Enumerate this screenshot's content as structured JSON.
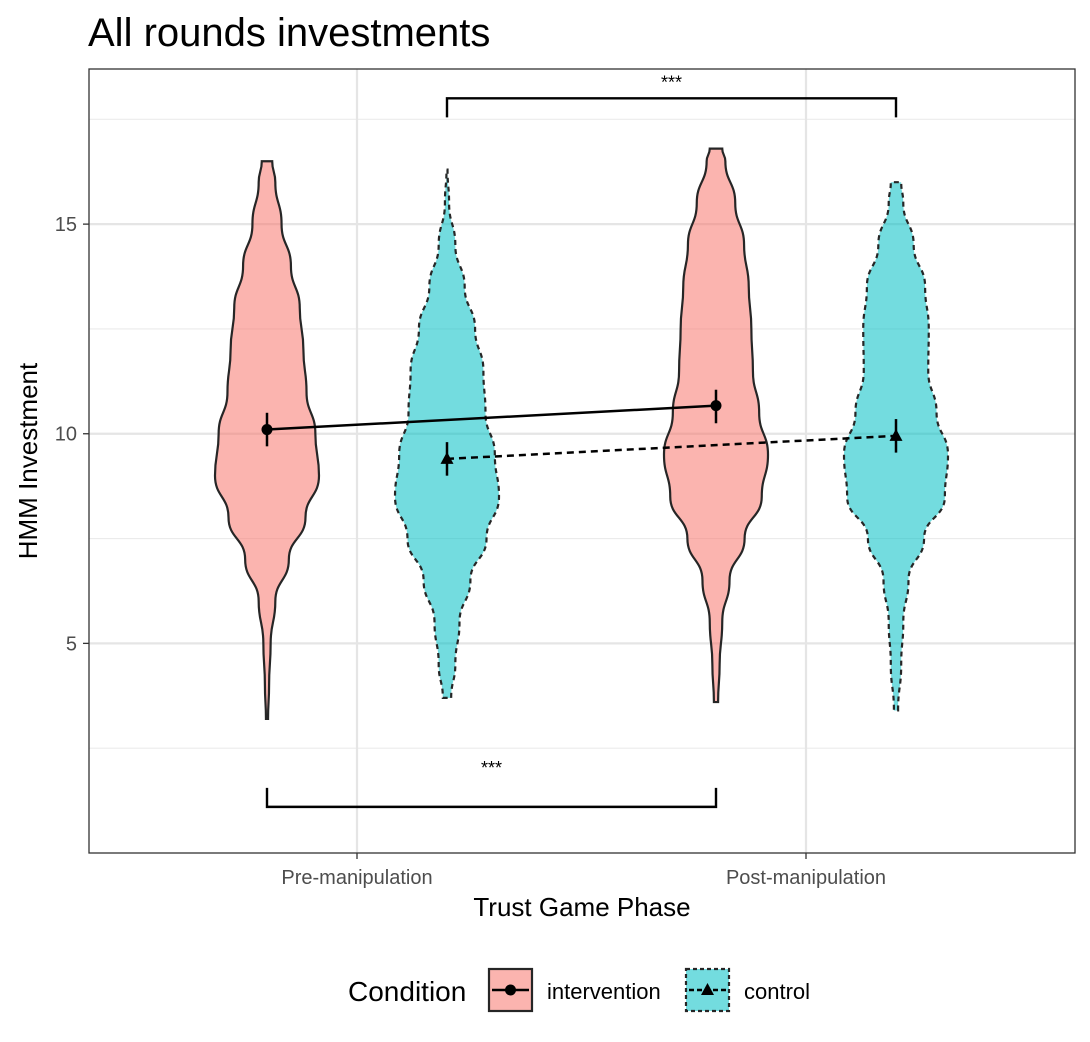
{
  "chart_data": {
    "type": "violin",
    "title": "All rounds investments",
    "xlabel": "Trust Game Phase",
    "ylabel": "HMM Investment",
    "categories": [
      "Pre-manipulation",
      "Post-manipulation"
    ],
    "ylim": [
      0,
      18.7
    ],
    "yticks": [
      5,
      10,
      15
    ],
    "grid": true,
    "legend": {
      "title": "Condition",
      "position": "bottom"
    },
    "series": [
      {
        "name": "intervention",
        "fill": "#F8766D",
        "line": "solid",
        "marker": "circle",
        "means": [
          10.1,
          10.67
        ],
        "ci": [
          [
            9.7,
            10.5
          ],
          [
            10.25,
            11.05
          ]
        ],
        "violins": [
          {
            "range": [
              3.2,
              16.5
            ],
            "density": [
              [
                3.2,
                0.02
              ],
              [
                4.0,
                0.04
              ],
              [
                5.0,
                0.07
              ],
              [
                6.0,
                0.16
              ],
              [
                7.0,
                0.42
              ],
              [
                8.0,
                0.74
              ],
              [
                9.0,
                1.0
              ],
              [
                10.0,
                0.93
              ],
              [
                11.0,
                0.76
              ],
              [
                12.0,
                0.7
              ],
              [
                13.0,
                0.63
              ],
              [
                14.0,
                0.46
              ],
              [
                15.0,
                0.28
              ],
              [
                16.0,
                0.16
              ],
              [
                16.5,
                0.1
              ]
            ]
          },
          {
            "range": [
              3.6,
              16.8
            ],
            "density": [
              [
                3.6,
                0.04
              ],
              [
                4.5,
                0.07
              ],
              [
                5.5,
                0.12
              ],
              [
                6.5,
                0.26
              ],
              [
                7.5,
                0.55
              ],
              [
                8.5,
                0.88
              ],
              [
                9.5,
                1.0
              ],
              [
                10.5,
                0.83
              ],
              [
                11.5,
                0.71
              ],
              [
                12.5,
                0.68
              ],
              [
                13.5,
                0.63
              ],
              [
                14.5,
                0.54
              ],
              [
                15.5,
                0.37
              ],
              [
                16.5,
                0.18
              ],
              [
                16.8,
                0.12
              ]
            ]
          }
        ]
      },
      {
        "name": "control",
        "fill": "#00BFC4",
        "line": "dashed",
        "marker": "triangle",
        "means": [
          9.4,
          9.95
        ],
        "ci": [
          [
            9.0,
            9.8
          ],
          [
            9.55,
            10.35
          ]
        ],
        "violins": [
          {
            "range": [
              3.7,
              16.3
            ],
            "density": [
              [
                3.7,
                0.08
              ],
              [
                4.5,
                0.16
              ],
              [
                5.5,
                0.24
              ],
              [
                6.5,
                0.45
              ],
              [
                7.5,
                0.76
              ],
              [
                8.5,
                1.0
              ],
              [
                9.5,
                0.92
              ],
              [
                10.5,
                0.74
              ],
              [
                11.5,
                0.7
              ],
              [
                12.5,
                0.54
              ],
              [
                13.5,
                0.34
              ],
              [
                14.5,
                0.16
              ],
              [
                15.5,
                0.04
              ],
              [
                16.3,
                0.01
              ]
            ]
          },
          {
            "range": [
              3.4,
              16.0
            ],
            "density": [
              [
                3.4,
                0.04
              ],
              [
                4.5,
                0.1
              ],
              [
                5.5,
                0.14
              ],
              [
                6.5,
                0.24
              ],
              [
                7.5,
                0.54
              ],
              [
                8.5,
                0.94
              ],
              [
                9.5,
                1.0
              ],
              [
                10.5,
                0.78
              ],
              [
                11.5,
                0.62
              ],
              [
                12.5,
                0.63
              ],
              [
                13.5,
                0.56
              ],
              [
                14.5,
                0.34
              ],
              [
                15.5,
                0.14
              ],
              [
                16.0,
                0.1
              ]
            ]
          }
        ]
      }
    ],
    "comparisons": [
      {
        "label": "***",
        "between": [
          "Pre-manipulation intervention",
          "Post-manipulation intervention"
        ],
        "y": 1.1,
        "placement": "bottom"
      },
      {
        "label": "***",
        "between": [
          "Pre-manipulation control",
          "Post-manipulation control"
        ],
        "y": 18.0,
        "placement": "top"
      }
    ]
  }
}
